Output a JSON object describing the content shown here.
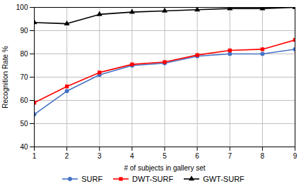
{
  "chart_data": {
    "type": "line",
    "xlabel": "# of subjects in gallery set",
    "ylabel": "Recognition Rate %",
    "x": [
      1,
      2,
      3,
      4,
      5,
      6,
      7,
      8,
      9
    ],
    "series": [
      {
        "name": "SURF",
        "color": "#4472C4",
        "marker": "circle",
        "values": [
          54,
          64,
          71,
          75,
          76,
          79,
          80,
          80,
          82
        ]
      },
      {
        "name": "DWT-SURF",
        "color": "#FF0000",
        "marker": "square",
        "values": [
          59,
          66,
          72,
          75.5,
          76.5,
          79.5,
          81.5,
          82,
          86
        ]
      },
      {
        "name": "GWT-SURF",
        "color": "#000000",
        "marker": "triangle",
        "values": [
          93.5,
          93,
          97,
          98,
          98.5,
          99,
          99.5,
          99.5,
          100
        ]
      }
    ],
    "xlim": [
      1,
      9
    ],
    "ylim": [
      40,
      100
    ],
    "xticks": [
      1,
      2,
      3,
      4,
      5,
      6,
      7,
      8,
      9
    ],
    "yticks": [
      40,
      50,
      60,
      70,
      80,
      90,
      100
    ],
    "grid": true,
    "legend": "bottom"
  }
}
